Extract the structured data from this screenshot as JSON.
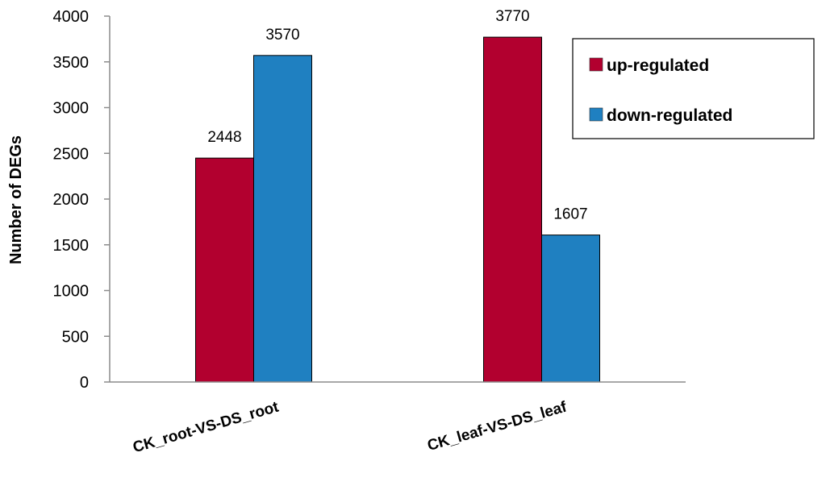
{
  "chart_data": {
    "type": "bar",
    "categories": [
      "CK_root-VS-DS_root",
      "CK_leaf-VS-DS_leaf"
    ],
    "series": [
      {
        "name": "up-regulated",
        "values": [
          2448,
          3770
        ],
        "color": "#b2002f"
      },
      {
        "name": "down-regulated",
        "values": [
          3570,
          1607
        ],
        "color": "#1f80c1"
      }
    ],
    "title": "",
    "xlabel": "",
    "ylabel": "Number of DEGs",
    "ylim": [
      0,
      4000
    ],
    "yticks": [
      "0",
      "500",
      "1000",
      "1500",
      "2000",
      "2500",
      "3000",
      "3500",
      "4000"
    ],
    "grid": false,
    "legend_position": "top-right"
  }
}
